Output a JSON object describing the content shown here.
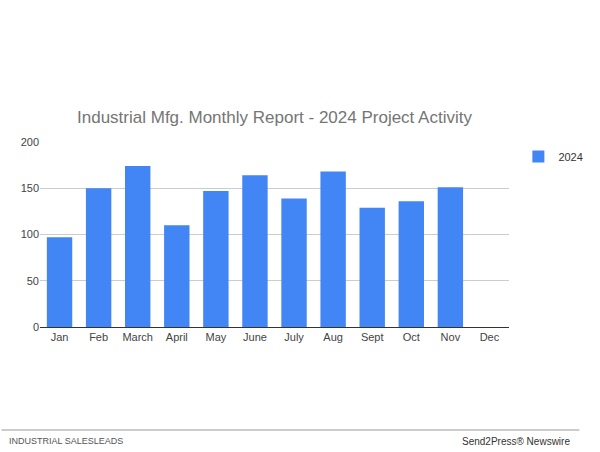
{
  "chart_data": {
    "type": "bar",
    "title": "Industrial Mfg. Monthly Report - 2024 Project Activity",
    "categories": [
      "Jan",
      "Feb",
      "March",
      "April",
      "May",
      "June",
      "July",
      "Aug",
      "Sept",
      "Oct",
      "Nov",
      "Dec"
    ],
    "series": [
      {
        "name": "2024",
        "color": "#4285f4",
        "values": [
          97,
          150,
          174,
          110,
          147,
          164,
          139,
          168,
          129,
          136,
          151,
          null
        ]
      }
    ],
    "ylim": [
      0,
      200
    ],
    "yticks": [
      0,
      50,
      100,
      150,
      200
    ],
    "grid": true,
    "legend": "right",
    "annotations": [
      "INDUSTRIAL SALESLEADS",
      "Send2Press® Newswire"
    ]
  }
}
